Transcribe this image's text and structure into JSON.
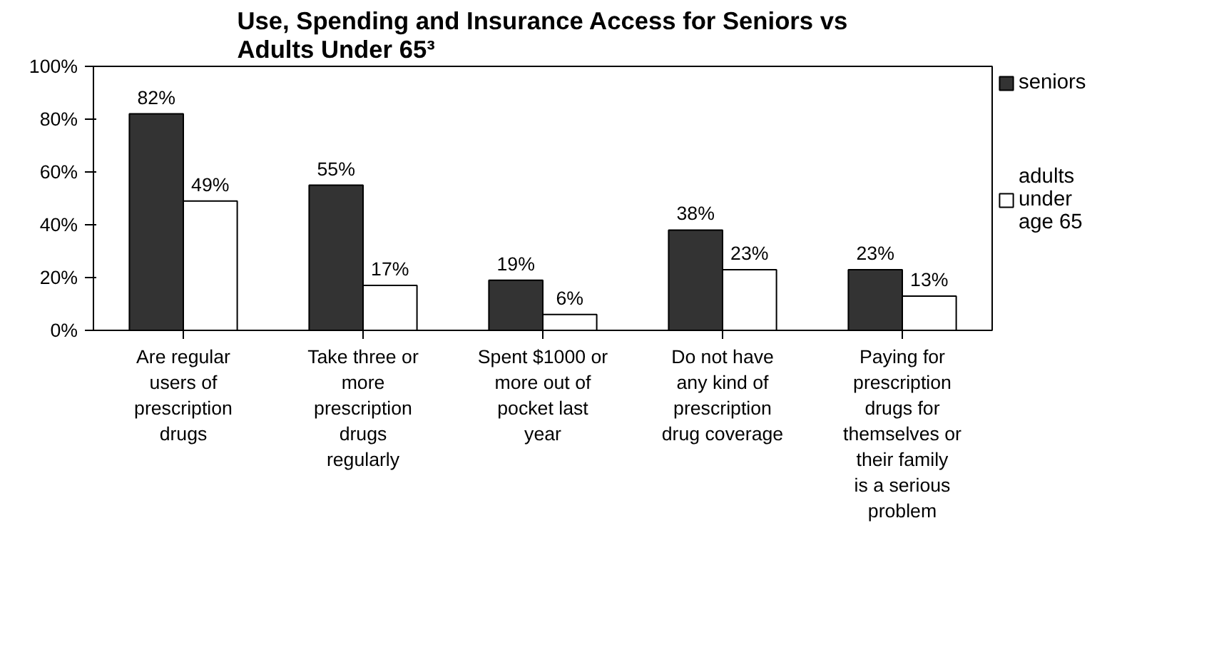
{
  "chart_data": {
    "type": "bar",
    "title": "Use, Spending and Insurance Access for Seniors vs Adults Under 65³",
    "categories": [
      "Are regular users of prescription drugs",
      "Take three or more prescription drugs regularly",
      "Spent $1000 or more out of pocket last year",
      "Do not have any kind of prescription drug coverage",
      "Paying for prescription drugs for themselves or their family is a serious problem"
    ],
    "series": [
      {
        "name": "seniors",
        "color": "#333333",
        "values": [
          82,
          55,
          19,
          38,
          23
        ],
        "value_labels": [
          "82%",
          "55%",
          "19%",
          "38%",
          "23%"
        ]
      },
      {
        "name": "adults under age 65",
        "color": "#ffffff",
        "values": [
          49,
          17,
          6,
          23,
          13
        ],
        "value_labels": [
          "49%",
          "17%",
          "6%",
          "23%",
          "13%"
        ]
      }
    ],
    "ylim": [
      0,
      100
    ],
    "yticks": [
      {
        "value": 0,
        "label": "0%"
      },
      {
        "value": 20,
        "label": "20%"
      },
      {
        "value": 40,
        "label": "40%"
      },
      {
        "value": 60,
        "label": "60%"
      },
      {
        "value": 80,
        "label": "80%"
      },
      {
        "value": 100,
        "label": "100%"
      }
    ],
    "grid": false,
    "legend": "right"
  }
}
